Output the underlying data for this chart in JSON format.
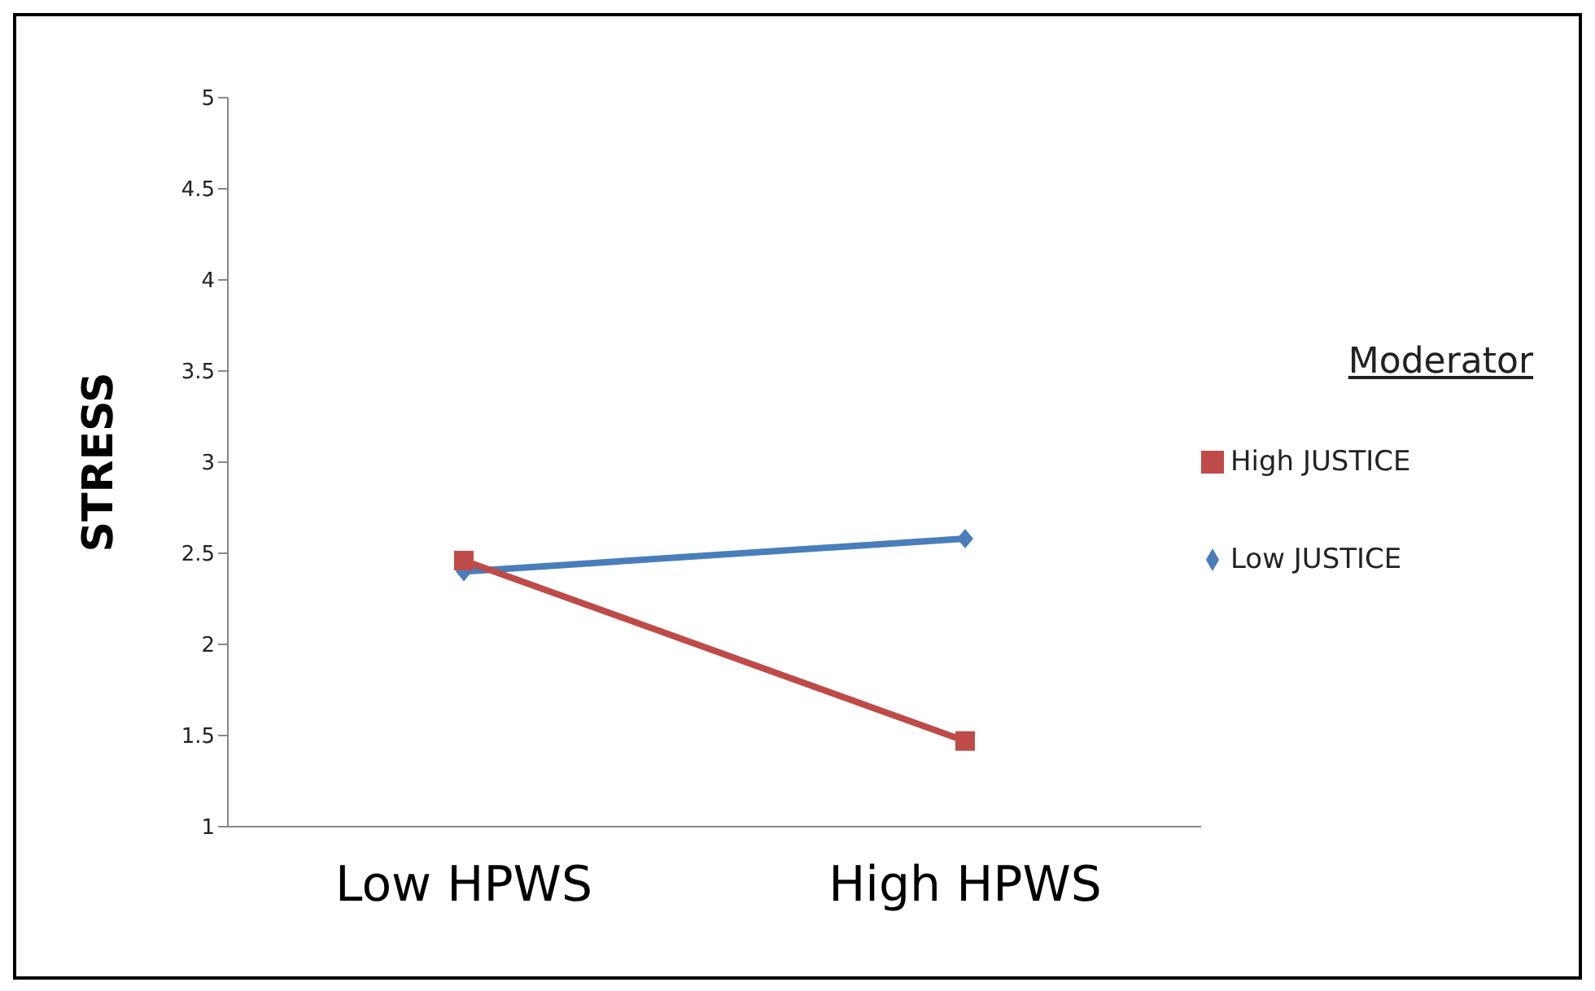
{
  "chart_data": {
    "type": "line",
    "ylabel": "STRESS",
    "legend_title": "Moderator",
    "categories": [
      "Low HPWS",
      "High HPWS"
    ],
    "series": [
      {
        "name": "Low JUSTICE",
        "color": "#4a7ebb",
        "values": [
          2.4,
          2.58
        ],
        "marker": "diamond"
      },
      {
        "name": "High JUSTICE",
        "color": "#be4b48",
        "values": [
          2.46,
          1.47
        ],
        "marker": "square"
      }
    ],
    "ylim": [
      1,
      5
    ],
    "yticks": [
      1,
      1.5,
      2,
      2.5,
      3,
      3.5,
      4,
      4.5,
      5
    ],
    "grid": false,
    "legend": "right"
  }
}
